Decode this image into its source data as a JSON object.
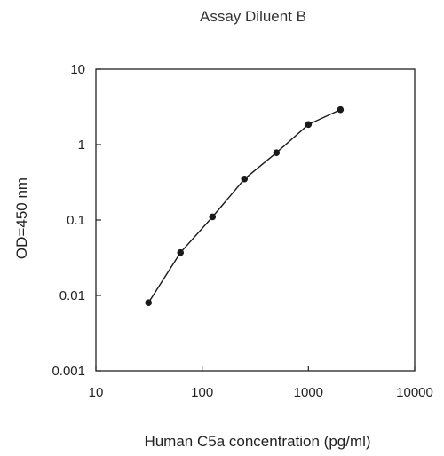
{
  "chart_data": {
    "type": "line",
    "title": "Assay Diluent B",
    "xlabel": "Human C5a concentration (pg/ml)",
    "ylabel": "OD=450 nm",
    "xscale": "log",
    "yscale": "log",
    "xlim": [
      10,
      10000
    ],
    "ylim": [
      0.001,
      10
    ],
    "x_ticks": [
      10,
      100,
      1000,
      10000
    ],
    "x_tick_labels": [
      "10",
      "100",
      "1000",
      "10000"
    ],
    "y_ticks": [
      0.001,
      0.01,
      0.1,
      1,
      10
    ],
    "y_tick_labels": [
      "0.001",
      "0.01",
      "0.1",
      "1",
      "10"
    ],
    "grid": false,
    "legend": "none",
    "series": [
      {
        "x": [
          31.25,
          62.5,
          125,
          250,
          500,
          1000,
          2000
        ],
        "y": [
          0.008,
          0.037,
          0.11,
          0.35,
          0.78,
          1.85,
          2.9
        ],
        "color": "#1a1a1a",
        "marker": "circle"
      }
    ]
  }
}
